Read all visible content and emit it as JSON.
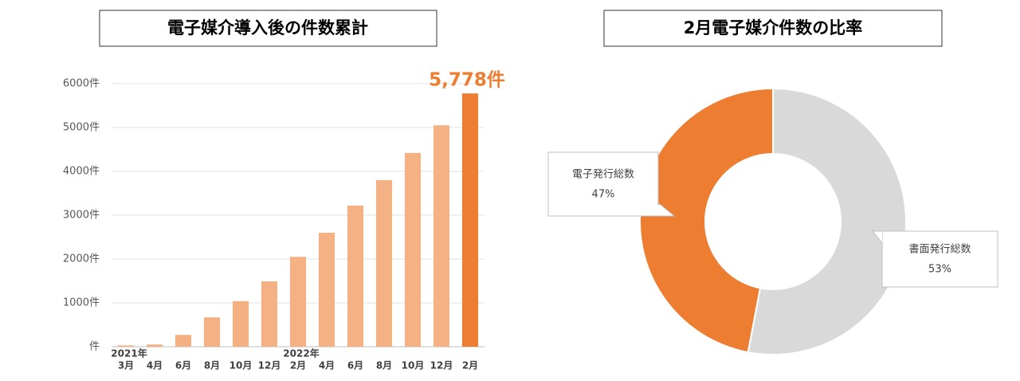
{
  "chart_data": [
    {
      "type": "bar",
      "title": "電子媒介導入後の件数累計",
      "categories": [
        "3月",
        "4月",
        "6月",
        "8月",
        "10月",
        "12月",
        "2月",
        "4月",
        "6月",
        "8月",
        "10月",
        "12月",
        "2月"
      ],
      "year_labels": [
        "2021年",
        null,
        null,
        null,
        null,
        null,
        "2022年",
        null,
        null,
        null,
        null,
        null,
        null
      ],
      "values": [
        30,
        50,
        270,
        670,
        1040,
        1490,
        2050,
        2600,
        3220,
        3800,
        4420,
        5050,
        5778
      ],
      "value_labels": [
        null,
        null,
        null,
        null,
        null,
        null,
        null,
        null,
        null,
        null,
        null,
        null,
        "5,778件"
      ],
      "colors": [
        "#f4b183",
        "#f4b183",
        "#f4b183",
        "#f4b183",
        "#f4b183",
        "#f4b183",
        "#f4b183",
        "#f4b183",
        "#f4b183",
        "#f4b183",
        "#f4b183",
        "#f4b183",
        "#ed7d31"
      ],
      "ylim": [
        0,
        6000
      ],
      "yticks": [
        {
          "value": 0,
          "label": "件"
        },
        {
          "value": 1000,
          "label": "1000件"
        },
        {
          "value": 2000,
          "label": "2000件"
        },
        {
          "value": 3000,
          "label": "3000件"
        },
        {
          "value": 4000,
          "label": "4000件"
        },
        {
          "value": 5000,
          "label": "5000件"
        },
        {
          "value": 6000,
          "label": "6000件"
        }
      ],
      "grid": true
    },
    {
      "type": "donut",
      "title": "2月電子媒介件数の比率",
      "categories": [
        "電子発行総数",
        "書面発行総数"
      ],
      "values": [
        47,
        53
      ],
      "value_labels": [
        "47%",
        "53%"
      ],
      "colors": [
        "#ed7d31",
        "#d9d9d9"
      ]
    }
  ]
}
